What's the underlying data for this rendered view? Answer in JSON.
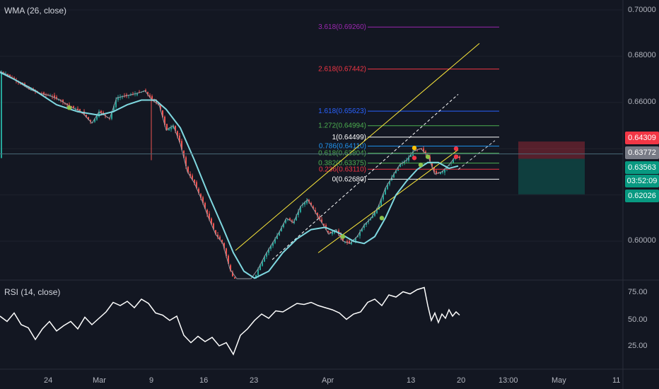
{
  "indicators": {
    "wma_label": "WMA (26, close)",
    "rsi_label": "RSI (14, close)"
  },
  "price_axis": {
    "ticks": [
      "0.70000",
      "0.68000",
      "0.66000",
      "0.60000"
    ]
  },
  "rsi_axis": {
    "ticks": [
      "75.00",
      "50.00",
      "25.00"
    ]
  },
  "time_axis": {
    "ticks": [
      "24",
      "Mar",
      "9",
      "16",
      "23",
      "Apr",
      "13",
      "20",
      "13:00",
      "May",
      "11"
    ]
  },
  "price_tags": [
    {
      "label": "0.64309",
      "color": "#f23645"
    },
    {
      "label": "0.63772",
      "color": "#787b86"
    },
    {
      "label": "0.63563",
      "color": "#089981"
    },
    {
      "label": "03:52:09",
      "color": "#089981"
    },
    {
      "label": "0.62026",
      "color": "#089981"
    }
  ],
  "fib_levels": [
    {
      "label": "3.618(0.69260)",
      "color": "#9c27b0"
    },
    {
      "label": "2.618(0.67442)",
      "color": "#f23645"
    },
    {
      "label": "1.618(0.65623)",
      "color": "#2962ff"
    },
    {
      "label": "1.272(0.64994)",
      "color": "#4caf50"
    },
    {
      "label": "1(0.64499)",
      "color": "#ffffff"
    },
    {
      "label": "0.786(0.64110)",
      "color": "#2196f3"
    },
    {
      "label": "0.618(0.63804)",
      "color": "#4caf50"
    },
    {
      "label": "0.382(0.63375)",
      "color": "#4caf50"
    },
    {
      "label": "0.236(0.63110)",
      "color": "#f23645"
    },
    {
      "label": "0(0.62680)",
      "color": "#ffffff"
    }
  ],
  "chart_data": {
    "type": "line",
    "price_range": [
      0.585,
      0.705
    ],
    "rsi_range": [
      5,
      85
    ],
    "wma": [
      [
        0,
        0.673
      ],
      [
        20,
        0.67
      ],
      [
        50,
        0.665
      ],
      [
        80,
        0.659
      ],
      [
        110,
        0.656
      ],
      [
        140,
        0.6545
      ],
      [
        160,
        0.656
      ],
      [
        180,
        0.659
      ],
      [
        200,
        0.661
      ],
      [
        220,
        0.661
      ],
      [
        235,
        0.657
      ],
      [
        255,
        0.649
      ],
      [
        275,
        0.635
      ],
      [
        295,
        0.62
      ],
      [
        315,
        0.606
      ],
      [
        330,
        0.595
      ],
      [
        345,
        0.587
      ],
      [
        360,
        0.584
      ],
      [
        380,
        0.587
      ],
      [
        400,
        0.595
      ],
      [
        420,
        0.601
      ],
      [
        440,
        0.605
      ],
      [
        460,
        0.606
      ],
      [
        480,
        0.6035
      ],
      [
        500,
        0.6
      ],
      [
        515,
        0.599
      ],
      [
        530,
        0.602
      ],
      [
        545,
        0.61
      ],
      [
        560,
        0.62
      ],
      [
        575,
        0.626
      ],
      [
        590,
        0.631
      ],
      [
        605,
        0.634
      ],
      [
        620,
        0.634
      ],
      [
        635,
        0.6315
      ],
      [
        648,
        0.6325
      ]
    ],
    "price": [
      [
        0,
        0.6735
      ],
      [
        10,
        0.672
      ],
      [
        25,
        0.669
      ],
      [
        40,
        0.666
      ],
      [
        55,
        0.664
      ],
      [
        70,
        0.663
      ],
      [
        85,
        0.661
      ],
      [
        100,
        0.658
      ],
      [
        115,
        0.656
      ],
      [
        130,
        0.651
      ],
      [
        140,
        0.656
      ],
      [
        155,
        0.653
      ],
      [
        165,
        0.662
      ],
      [
        180,
        0.663
      ],
      [
        195,
        0.664
      ],
      [
        205,
        0.665
      ],
      [
        215,
        0.661
      ],
      [
        225,
        0.659
      ],
      [
        235,
        0.648
      ],
      [
        245,
        0.65
      ],
      [
        255,
        0.642
      ],
      [
        265,
        0.63
      ],
      [
        275,
        0.625
      ],
      [
        285,
        0.618
      ],
      [
        295,
        0.61
      ],
      [
        305,
        0.603
      ],
      [
        315,
        0.599
      ],
      [
        325,
        0.588
      ],
      [
        335,
        0.58
      ],
      [
        345,
        0.582
      ],
      [
        355,
        0.579
      ],
      [
        365,
        0.588
      ],
      [
        375,
        0.594
      ],
      [
        385,
        0.599
      ],
      [
        395,
        0.604
      ],
      [
        405,
        0.61
      ],
      [
        415,
        0.608
      ],
      [
        425,
        0.615
      ],
      [
        435,
        0.618
      ],
      [
        445,
        0.613
      ],
      [
        455,
        0.608
      ],
      [
        465,
        0.603
      ],
      [
        475,
        0.605
      ],
      [
        485,
        0.6
      ],
      [
        495,
        0.599
      ],
      [
        505,
        0.602
      ],
      [
        515,
        0.607
      ],
      [
        525,
        0.61
      ],
      [
        535,
        0.615
      ],
      [
        545,
        0.623
      ],
      [
        555,
        0.628
      ],
      [
        565,
        0.633
      ],
      [
        575,
        0.635
      ],
      [
        585,
        0.639
      ],
      [
        595,
        0.64
      ],
      [
        605,
        0.637
      ],
      [
        615,
        0.629
      ],
      [
        625,
        0.63
      ],
      [
        635,
        0.633
      ],
      [
        645,
        0.637
      ],
      [
        650,
        0.636
      ]
    ],
    "rsi": [
      [
        0,
        52
      ],
      [
        10,
        47
      ],
      [
        20,
        55
      ],
      [
        30,
        44
      ],
      [
        40,
        41
      ],
      [
        50,
        30
      ],
      [
        60,
        40
      ],
      [
        70,
        47
      ],
      [
        80,
        38
      ],
      [
        90,
        43
      ],
      [
        100,
        47
      ],
      [
        110,
        40
      ],
      [
        120,
        51
      ],
      [
        130,
        44
      ],
      [
        140,
        50
      ],
      [
        150,
        56
      ],
      [
        160,
        65
      ],
      [
        170,
        62
      ],
      [
        180,
        66
      ],
      [
        190,
        60
      ],
      [
        200,
        68
      ],
      [
        210,
        64
      ],
      [
        220,
        55
      ],
      [
        230,
        53
      ],
      [
        240,
        48
      ],
      [
        250,
        52
      ],
      [
        260,
        34
      ],
      [
        270,
        27
      ],
      [
        280,
        33
      ],
      [
        290,
        28
      ],
      [
        300,
        32
      ],
      [
        310,
        24
      ],
      [
        320,
        27
      ],
      [
        330,
        16
      ],
      [
        340,
        34
      ],
      [
        350,
        40
      ],
      [
        360,
        48
      ],
      [
        370,
        54
      ],
      [
        380,
        50
      ],
      [
        390,
        57
      ],
      [
        400,
        56
      ],
      [
        410,
        60
      ],
      [
        420,
        64
      ],
      [
        430,
        63
      ],
      [
        440,
        65
      ],
      [
        450,
        62
      ],
      [
        460,
        60
      ],
      [
        470,
        58
      ],
      [
        480,
        55
      ],
      [
        490,
        49
      ],
      [
        500,
        54
      ],
      [
        510,
        56
      ],
      [
        520,
        65
      ],
      [
        530,
        68
      ],
      [
        540,
        62
      ],
      [
        550,
        72
      ],
      [
        560,
        70
      ],
      [
        570,
        75
      ],
      [
        580,
        73
      ],
      [
        590,
        77
      ],
      [
        600,
        79
      ],
      [
        605,
        62
      ],
      [
        610,
        48
      ],
      [
        615,
        55
      ],
      [
        620,
        46
      ],
      [
        625,
        54
      ],
      [
        630,
        50
      ],
      [
        635,
        58
      ],
      [
        640,
        52
      ],
      [
        645,
        56
      ],
      [
        650,
        53
      ]
    ],
    "markers": [
      {
        "x": 98,
        "y": 0.6577,
        "color": "#8bc34a"
      },
      {
        "x": 485,
        "y": 0.602,
        "color": "#8bc34a"
      },
      {
        "x": 540,
        "y": 0.61,
        "color": "#8bc34a"
      },
      {
        "x": 586,
        "y": 0.6403,
        "color": "#ffc107"
      },
      {
        "x": 586,
        "y": 0.636,
        "color": "#f23645"
      },
      {
        "x": 595,
        "y": 0.633,
        "color": "#8bc34a"
      },
      {
        "x": 605,
        "y": 0.6365,
        "color": "#8bc34a"
      },
      {
        "x": 645,
        "y": 0.64,
        "color": "#f23645"
      },
      {
        "x": 645,
        "y": 0.6365,
        "color": "#f23645"
      }
    ],
    "channel": [
      {
        "from": [
          333,
          0.596
        ],
        "to": [
          678,
          0.6855
        ],
        "color": "#ffeb3b",
        "dash": false
      },
      {
        "from": [
          450,
          0.595
        ],
        "to": [
          648,
          0.6395
        ],
        "color": "#ffeb3b",
        "dash": false
      },
      {
        "from": [
          385,
          0.592
        ],
        "to": [
          648,
          0.6635
        ],
        "color": "#ffffff",
        "dash": true
      },
      {
        "from": [
          648,
          0.631
        ],
        "to": [
          700,
          0.6435
        ],
        "color": "#d1d4dc",
        "dash": true
      }
    ],
    "fib_values": [
      0.6926,
      0.67442,
      0.65623,
      0.64994,
      0.64499,
      0.6411,
      0.63804,
      0.63375,
      0.6311,
      0.6268
    ],
    "position": {
      "top": 0.64309,
      "entry": 0.63563,
      "bottom": 0.62026
    },
    "current_price": 0.63772
  }
}
